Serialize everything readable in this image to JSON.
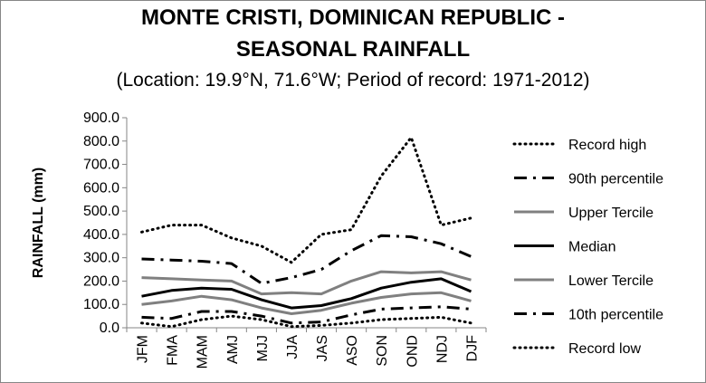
{
  "chart_data": {
    "type": "line",
    "title_line1": "MONTE CRISTI, DOMINICAN REPUBLIC -",
    "title_line2": "SEASONAL RAINFALL",
    "subtitle": "(Location: 19.9°N, 71.6°W; Period of record: 1971-2012)",
    "ylabel": "RAINFALL (mm)",
    "xlabel": "",
    "ylim": [
      0,
      900
    ],
    "ytick_step": 100,
    "ytick_labels": [
      "0.0",
      "100.0",
      "200.0",
      "300.0",
      "400.0",
      "500.0",
      "600.0",
      "700.0",
      "800.0",
      "900.0"
    ],
    "categories": [
      "JFM",
      "FMA",
      "MAM",
      "AMJ",
      "MJJ",
      "JJA",
      "JAS",
      "ASO",
      "SON",
      "OND",
      "NDJ",
      "DJF"
    ],
    "grid": false,
    "legend_position": "right",
    "series": [
      {
        "name": "Record high",
        "style": "dotted",
        "color": "#000000",
        "values": [
          410,
          440,
          440,
          385,
          350,
          280,
          400,
          420,
          650,
          815,
          440,
          470
        ]
      },
      {
        "name": "90th percentile",
        "style": "dashdot",
        "color": "#000000",
        "values": [
          295,
          290,
          285,
          275,
          190,
          215,
          250,
          330,
          395,
          390,
          360,
          305
        ]
      },
      {
        "name": "Upper Tercile",
        "style": "solid",
        "color": "#808080",
        "values": [
          215,
          210,
          205,
          200,
          145,
          150,
          145,
          200,
          240,
          235,
          240,
          205
        ]
      },
      {
        "name": "Median",
        "style": "solid",
        "color": "#000000",
        "values": [
          135,
          160,
          170,
          165,
          120,
          85,
          95,
          125,
          170,
          195,
          210,
          155
        ]
      },
      {
        "name": "Lower Tercile",
        "style": "solid",
        "color": "#808080",
        "values": [
          100,
          115,
          135,
          120,
          85,
          60,
          75,
          105,
          130,
          145,
          150,
          115
        ]
      },
      {
        "name": "10th percentile",
        "style": "dashdot",
        "color": "#000000",
        "values": [
          45,
          40,
          70,
          70,
          50,
          20,
          25,
          55,
          80,
          85,
          90,
          80
        ]
      },
      {
        "name": "Record low",
        "style": "dotted",
        "color": "#000000",
        "values": [
          20,
          5,
          35,
          50,
          35,
          5,
          10,
          20,
          35,
          40,
          45,
          20
        ]
      }
    ]
  }
}
